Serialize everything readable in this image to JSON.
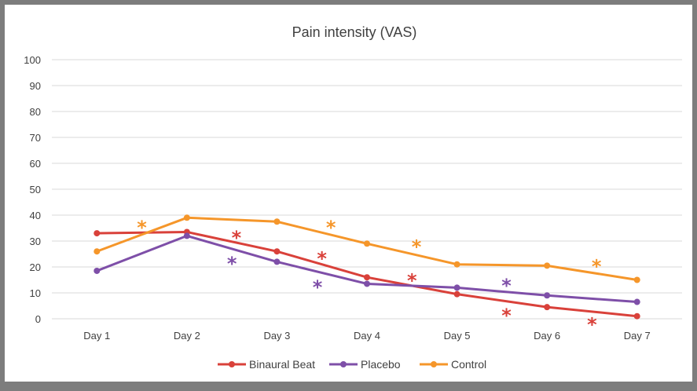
{
  "chart_data": {
    "type": "line",
    "title": "Pain intensity (VAS)",
    "categories": [
      "Day 1",
      "Day 2",
      "Day 3",
      "Day 4",
      "Day 5",
      "Day 6",
      "Day 7"
    ],
    "ylim": [
      0,
      100
    ],
    "yticks": [
      0,
      10,
      20,
      30,
      40,
      50,
      60,
      70,
      80,
      90,
      100
    ],
    "grid": true,
    "legend": "bottom",
    "series": [
      {
        "name": "Binaural Beat",
        "color": "#d9413a",
        "values": [
          33,
          33.5,
          26,
          16,
          9.5,
          4.5,
          1
        ]
      },
      {
        "name": "Placebo",
        "color": "#7e4fa8",
        "values": [
          18.5,
          32,
          22,
          13.5,
          12,
          9,
          6.5
        ]
      },
      {
        "name": "Control",
        "color": "#f5962a",
        "values": [
          26,
          39,
          37.5,
          29,
          21,
          20.5,
          15
        ]
      }
    ],
    "annotations": [
      {
        "text": "*",
        "series": "Control",
        "x": 1.5,
        "y": 37
      },
      {
        "text": "*",
        "series": "Binaural Beat",
        "x": 2.55,
        "y": 33
      },
      {
        "text": "*",
        "series": "Placebo",
        "x": 2.5,
        "y": 23
      },
      {
        "text": "*",
        "series": "Binaural Beat",
        "x": 3.5,
        "y": 25
      },
      {
        "text": "*",
        "series": "Placebo",
        "x": 3.45,
        "y": 14
      },
      {
        "text": "*",
        "series": "Control",
        "x": 3.6,
        "y": 37
      },
      {
        "text": "*",
        "series": "Binaural Beat",
        "x": 4.5,
        "y": 16.5
      },
      {
        "text": "*",
        "series": "Control",
        "x": 4.55,
        "y": 29.5
      },
      {
        "text": "*",
        "series": "Binaural Beat",
        "x": 5.55,
        "y": 3
      },
      {
        "text": "*",
        "series": "Placebo",
        "x": 5.55,
        "y": 14.5
      },
      {
        "text": "*",
        "series": "Binaural Beat",
        "x": 6.5,
        "y": -0.5
      },
      {
        "text": "*",
        "series": "Control",
        "x": 6.55,
        "y": 22
      }
    ]
  }
}
